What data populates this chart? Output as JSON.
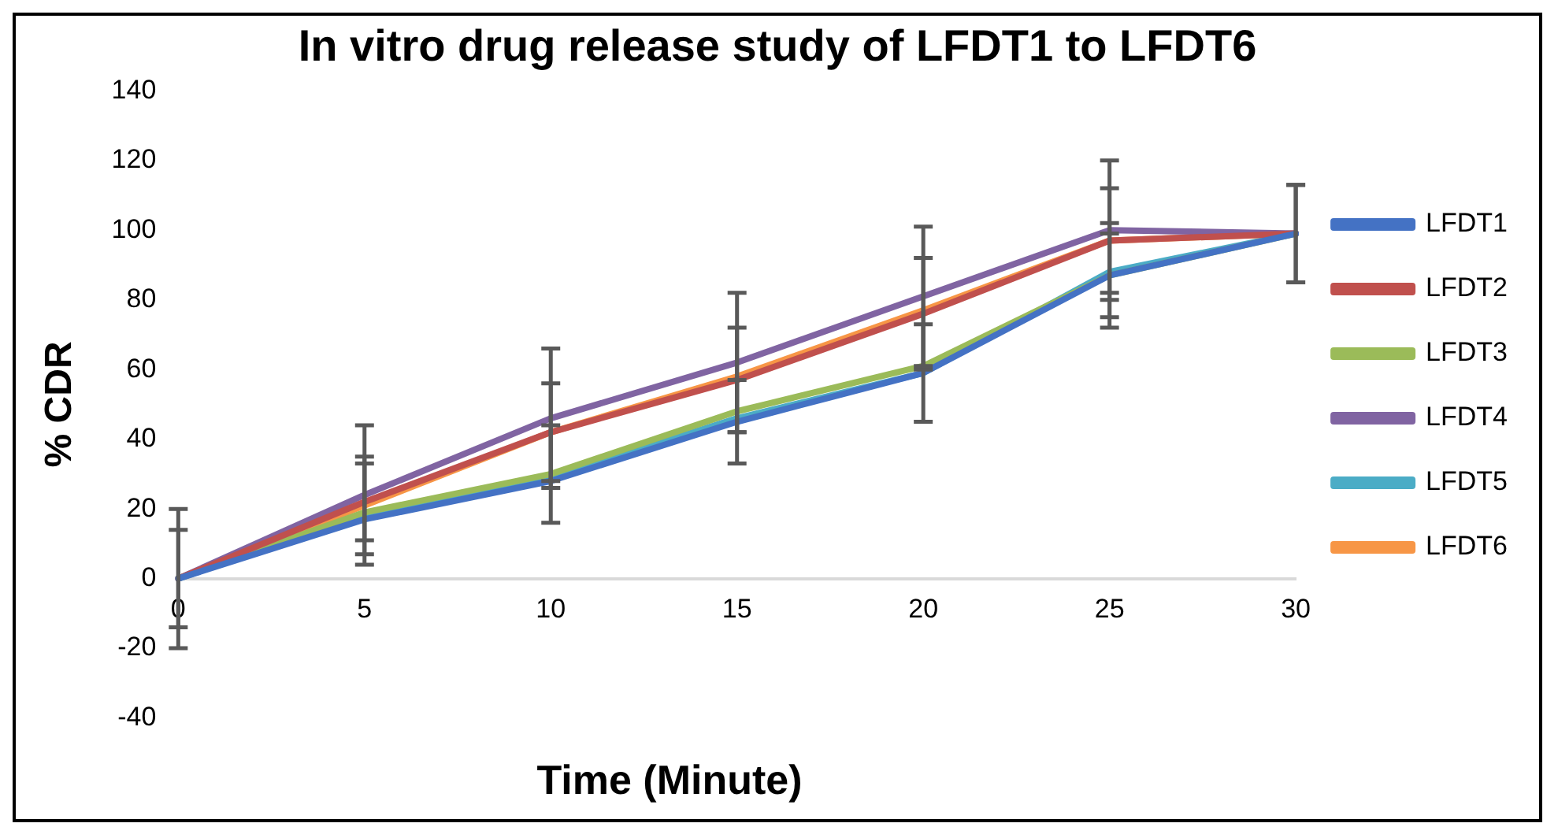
{
  "chart_data": {
    "type": "line",
    "title": "In vitro drug release study of LFDT1 to LFDT6",
    "xlabel": "Time (Minute)",
    "ylabel": "% CDR",
    "categories": [
      "0",
      "5",
      "10",
      "15",
      "20",
      "25",
      "30"
    ],
    "series": [
      {
        "name": "LFDT1",
        "color": "#4472c4",
        "values": [
          0,
          17,
          28,
          45,
          59,
          87,
          99
        ],
        "errors": [
          null,
          null,
          null,
          12,
          14,
          15,
          14
        ]
      },
      {
        "name": "LFDT2",
        "color": "#c0504d",
        "values": [
          0,
          22,
          42,
          57,
          76,
          97,
          99
        ],
        "errors": [
          14,
          11,
          14,
          15,
          16,
          15,
          14
        ]
      },
      {
        "name": "LFDT3",
        "color": "#9bbb59",
        "values": [
          0,
          19,
          30,
          48,
          61,
          87,
          99
        ],
        "errors": [
          null,
          null,
          14,
          null,
          null,
          12,
          null
        ]
      },
      {
        "name": "LFDT4",
        "color": "#8064a2",
        "values": [
          0,
          24,
          46,
          62,
          81,
          100,
          99
        ],
        "errors": [
          20,
          20,
          20,
          20,
          20,
          20,
          null
        ]
      },
      {
        "name": "LFDT5",
        "color": "#4bacc6",
        "values": [
          0,
          18,
          29,
          46,
          59,
          88,
          99
        ]
      },
      {
        "name": "LFDT6",
        "color": "#f79646",
        "values": [
          0,
          21,
          42,
          58,
          77,
          97,
          99
        ],
        "errors": [
          null,
          14,
          null,
          null,
          null,
          null,
          null
        ]
      }
    ],
    "ylim": [
      -40,
      140
    ],
    "yticks": [
      -40,
      -20,
      0,
      20,
      40,
      60,
      80,
      100,
      120,
      140
    ],
    "grid": false,
    "legend": "right",
    "marker": "none",
    "line_style": "solid"
  }
}
